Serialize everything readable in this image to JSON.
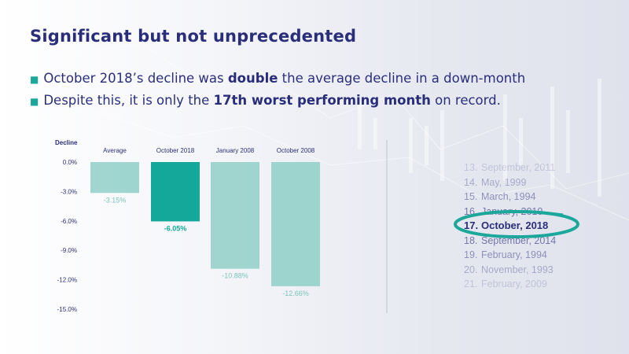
{
  "slide": {
    "title": "Significant but not unprecedented",
    "bullets": [
      {
        "pre": "October 2018’s decline was ",
        "bold": "double",
        "post": " the average decline in a down-month"
      },
      {
        "pre": "Despite this, it is only the ",
        "bold": "17th worst performing month",
        "post": " on record."
      }
    ]
  },
  "colors": {
    "title": "#2a2e7a",
    "accent": "#1ba89a",
    "bar_light": "#8fcfc7",
    "bar_highlight": "#13a89a",
    "text_muted": "#2a2e7a"
  },
  "chart_data": {
    "type": "bar",
    "ylabel": "Decline",
    "categories": [
      "Average",
      "October 2018",
      "January 2008",
      "October 2008"
    ],
    "values": [
      -3.15,
      -6.05,
      -10.88,
      -12.66
    ],
    "value_labels": [
      "-3.15%",
      "-6.05%",
      "-10.88%",
      "-12.66%"
    ],
    "highlight_index": 1,
    "ylim": [
      -15,
      0
    ],
    "yticks": [
      0,
      -3,
      -6,
      -9,
      -12,
      -15
    ],
    "ytick_labels": [
      "0.0%",
      "-3.0%",
      "-6.0%",
      "-9.0%",
      "-12.0%",
      "-15.0%"
    ]
  },
  "ranking": {
    "items": [
      {
        "rank": "13.",
        "label": "September, 2011"
      },
      {
        "rank": "14.",
        "label": "May, 1999"
      },
      {
        "rank": "15.",
        "label": "March, 1994"
      },
      {
        "rank": "16.",
        "label": "January, 2010"
      },
      {
        "rank": "17.",
        "label": "October, 2018"
      },
      {
        "rank": "18.",
        "label": "September, 2014"
      },
      {
        "rank": "19.",
        "label": "February, 1994"
      },
      {
        "rank": "20.",
        "label": "November, 1993"
      },
      {
        "rank": "21.",
        "label": "February, 2009"
      }
    ],
    "highlight_index": 4
  }
}
